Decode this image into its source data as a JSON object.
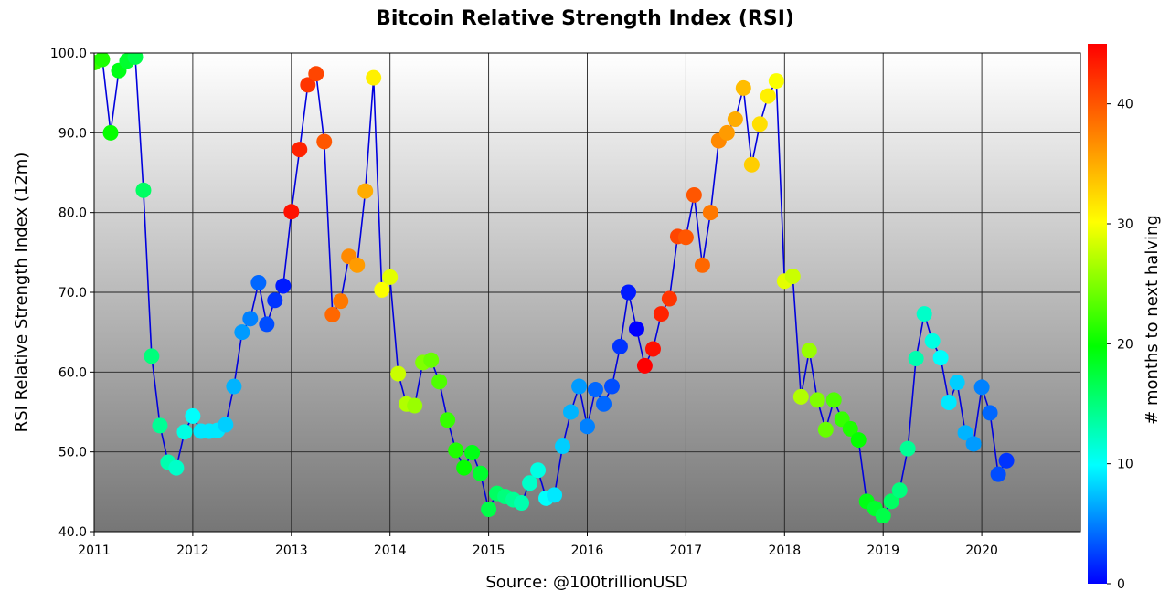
{
  "chart_data": {
    "type": "scatter",
    "title": "Bitcoin Relative Strength Index (RSI)",
    "xlabel": "Source: @100trillionUSD",
    "ylabel": "RSI Relative Strength Index (12m)",
    "colorbar_label": "# months to next halving",
    "xlim": [
      2011.0,
      2021.0
    ],
    "ylim": [
      40.0,
      100.0
    ],
    "x_ticks": [
      2011,
      2012,
      2013,
      2014,
      2015,
      2016,
      2017,
      2018,
      2019,
      2020
    ],
    "y_ticks": [
      "40.0",
      "50.0",
      "60.0",
      "70.0",
      "80.0",
      "90.0",
      "100.0"
    ],
    "colorbar_range": [
      0,
      45
    ],
    "colorbar_ticks": [
      0,
      10,
      20,
      30,
      40
    ],
    "grid": true,
    "series": [
      {
        "line_color": "#0000dd",
        "x": [
          2011.0,
          2011.083,
          2011.167,
          2011.25,
          2011.333,
          2011.417,
          2011.5,
          2011.583,
          2011.667,
          2011.75,
          2011.833,
          2011.917,
          2012.0,
          2012.083,
          2012.167,
          2012.25,
          2012.333,
          2012.417,
          2012.5,
          2012.583,
          2012.667,
          2012.75,
          2012.833,
          2012.917,
          2013.0,
          2013.083,
          2013.167,
          2013.25,
          2013.333,
          2013.417,
          2013.5,
          2013.583,
          2013.667,
          2013.75,
          2013.833,
          2013.917,
          2014.0,
          2014.083,
          2014.167,
          2014.25,
          2014.333,
          2014.417,
          2014.5,
          2014.583,
          2014.667,
          2014.75,
          2014.833,
          2014.917,
          2015.0,
          2015.083,
          2015.167,
          2015.25,
          2015.333,
          2015.417,
          2015.5,
          2015.583,
          2015.667,
          2015.75,
          2015.833,
          2015.917,
          2016.0,
          2016.083,
          2016.167,
          2016.25,
          2016.333,
          2016.417,
          2016.5,
          2016.583,
          2016.667,
          2016.75,
          2016.833,
          2016.917,
          2017.0,
          2017.083,
          2017.167,
          2017.25,
          2017.333,
          2017.417,
          2017.5,
          2017.583,
          2017.667,
          2017.75,
          2017.833,
          2017.917,
          2018.0,
          2018.083,
          2018.167,
          2018.25,
          2018.333,
          2018.417,
          2018.5,
          2018.583,
          2018.667,
          2018.75,
          2018.833,
          2018.917,
          2019.0,
          2019.083,
          2019.167,
          2019.25,
          2019.333,
          2019.417,
          2019.5,
          2019.583,
          2019.667,
          2019.75,
          2019.833,
          2019.917,
          2020.0,
          2020.083,
          2020.167,
          2020.25
        ],
        "y": [
          98.8,
          99.2,
          90.0,
          97.8,
          99.0,
          99.5,
          82.8,
          62.0,
          53.3,
          48.7,
          48.0,
          52.5,
          54.5,
          52.6,
          52.6,
          52.7,
          53.4,
          58.2,
          65.0,
          66.7,
          71.2,
          66.0,
          69.0,
          70.8,
          80.1,
          87.9,
          96.0,
          97.4,
          88.9,
          67.2,
          68.9,
          74.5,
          73.4,
          82.7,
          96.9,
          70.3,
          71.9,
          59.8,
          56.0,
          55.8,
          61.2,
          61.5,
          58.8,
          54.0,
          50.2,
          48.0,
          49.9,
          47.3,
          42.8,
          44.8,
          44.4,
          44.0,
          43.6,
          46.1,
          47.7,
          44.2,
          44.6,
          50.7,
          55.0,
          58.2,
          53.2,
          57.8,
          56.0,
          58.2,
          63.2,
          70.0,
          65.4,
          60.8,
          62.9,
          67.3,
          69.2,
          77.0,
          76.9,
          82.2,
          73.4,
          80.0,
          89.0,
          90.0,
          91.7,
          95.6,
          86.0,
          91.1,
          94.6,
          96.5,
          71.4,
          72.0,
          56.9,
          62.7,
          56.5,
          52.8,
          56.5,
          54.1,
          52.9,
          51.5,
          43.8,
          42.9,
          42.0,
          43.8,
          45.2,
          50.4,
          61.7,
          67.3,
          63.9,
          61.8,
          56.2,
          58.7,
          52.4,
          51.0,
          58.1,
          54.9,
          47.2,
          48.9
        ],
        "months_to_halving": [
          22,
          21,
          20,
          19,
          18,
          17,
          16,
          15,
          14,
          13,
          12,
          11,
          10,
          9,
          9,
          9,
          8,
          7,
          6,
          5,
          4,
          3,
          2,
          1,
          44,
          43,
          42,
          41,
          40,
          39,
          38,
          37,
          36,
          35,
          31,
          30,
          29,
          28,
          27,
          26,
          25,
          24,
          23,
          22,
          21,
          20,
          19,
          18,
          17,
          16,
          15,
          14,
          13,
          12,
          11,
          10,
          9,
          8,
          7,
          6,
          5,
          4,
          4,
          3,
          2,
          1,
          0,
          45,
          44,
          43,
          42,
          41,
          40,
          40,
          39,
          38,
          37,
          36,
          35,
          34,
          33,
          32,
          31,
          30,
          29,
          28,
          27,
          26,
          25,
          24,
          23,
          22,
          21,
          20,
          19,
          18,
          17,
          16,
          15,
          14,
          13,
          12,
          11,
          10,
          9,
          8,
          7,
          6,
          5,
          4,
          3,
          2
        ]
      }
    ]
  }
}
